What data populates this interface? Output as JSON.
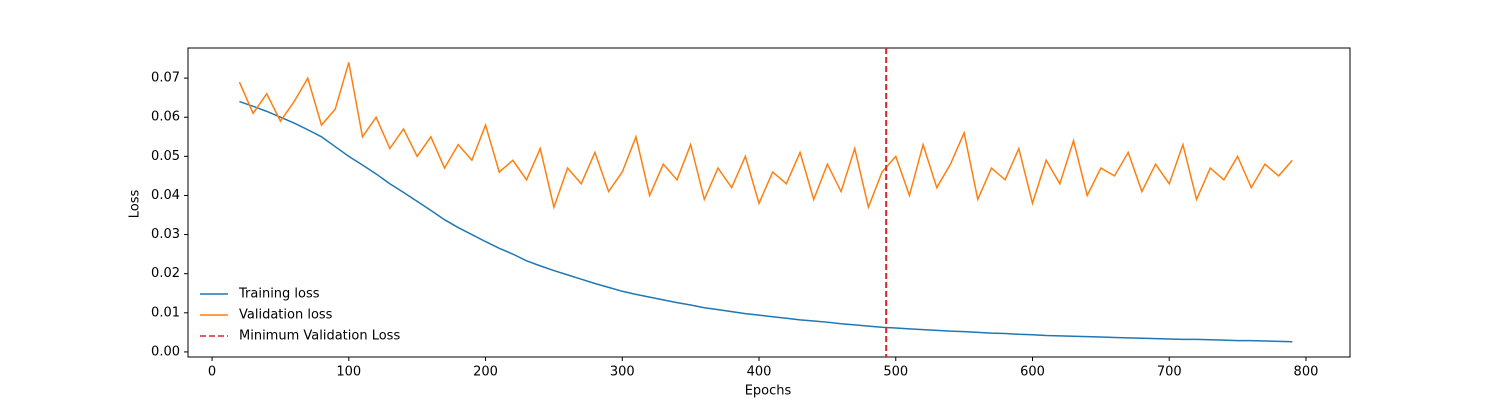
{
  "chart_data": {
    "type": "line",
    "xlabel": "Epochs",
    "ylabel": "Loss",
    "x": [
      20,
      30,
      40,
      50,
      60,
      70,
      80,
      90,
      100,
      110,
      120,
      130,
      140,
      150,
      160,
      170,
      180,
      190,
      200,
      210,
      220,
      230,
      240,
      250,
      260,
      270,
      280,
      290,
      300,
      310,
      320,
      330,
      340,
      350,
      360,
      370,
      380,
      390,
      400,
      410,
      420,
      430,
      440,
      450,
      460,
      470,
      480,
      490,
      500,
      510,
      520,
      530,
      540,
      550,
      560,
      570,
      580,
      590,
      600,
      610,
      620,
      630,
      640,
      650,
      660,
      670,
      680,
      690,
      700,
      710,
      720,
      730,
      740,
      750,
      760,
      770,
      780,
      790
    ],
    "series": [
      {
        "name": "Training loss",
        "color": "#1f77b4",
        "values": [
          0.064,
          0.0628,
          0.0615,
          0.06,
          0.0585,
          0.0568,
          0.055,
          0.0525,
          0.05,
          0.0478,
          0.0455,
          0.043,
          0.0408,
          0.0385,
          0.0362,
          0.0338,
          0.0318,
          0.03,
          0.0282,
          0.0265,
          0.025,
          0.0233,
          0.022,
          0.0208,
          0.0197,
          0.0186,
          0.0175,
          0.0165,
          0.0155,
          0.0147,
          0.014,
          0.0133,
          0.0126,
          0.012,
          0.0113,
          0.0108,
          0.0103,
          0.0098,
          0.0094,
          0.009,
          0.0086,
          0.0082,
          0.0079,
          0.0076,
          0.0072,
          0.0069,
          0.0066,
          0.0063,
          0.0061,
          0.0059,
          0.0057,
          0.0055,
          0.0053,
          0.0052,
          0.005,
          0.0048,
          0.0047,
          0.0045,
          0.0044,
          0.0042,
          0.0041,
          0.004,
          0.0039,
          0.0038,
          0.0037,
          0.0036,
          0.0035,
          0.0034,
          0.0033,
          0.0032,
          0.0032,
          0.0031,
          0.003,
          0.0029,
          0.0029,
          0.0028,
          0.0027,
          0.0026
        ]
      },
      {
        "name": "Validation loss",
        "color": "#ff7f0e",
        "values": [
          0.069,
          0.061,
          0.066,
          0.059,
          0.064,
          0.07,
          0.058,
          0.062,
          0.074,
          0.055,
          0.06,
          0.052,
          0.057,
          0.05,
          0.055,
          0.047,
          0.053,
          0.049,
          0.058,
          0.046,
          0.049,
          0.044,
          0.052,
          0.037,
          0.047,
          0.043,
          0.051,
          0.041,
          0.046,
          0.055,
          0.04,
          0.048,
          0.044,
          0.053,
          0.039,
          0.047,
          0.042,
          0.05,
          0.038,
          0.046,
          0.043,
          0.051,
          0.039,
          0.048,
          0.041,
          0.052,
          0.037,
          0.046,
          0.05,
          0.04,
          0.053,
          0.042,
          0.048,
          0.056,
          0.039,
          0.047,
          0.044,
          0.052,
          0.038,
          0.049,
          0.043,
          0.054,
          0.04,
          0.047,
          0.045,
          0.051,
          0.041,
          0.048,
          0.043,
          0.053,
          0.039,
          0.047,
          0.044,
          0.05,
          0.042,
          0.048,
          0.045,
          0.049
        ]
      }
    ],
    "vline": {
      "x": 493,
      "name": "Minimum Validation Loss",
      "color": "#d62728"
    },
    "xlim": [
      -17.6,
      832.2
    ],
    "xticks": [
      0,
      100,
      200,
      300,
      400,
      500,
      600,
      700,
      800
    ],
    "ylim": [
      -0.0013,
      0.0777
    ],
    "yticks": [
      {
        "value": 0,
        "label": "0.00"
      },
      0.01,
      0.02,
      0.03,
      0.04,
      0.05,
      0.06,
      0.07
    ],
    "legend": "lower left",
    "grid": false
  }
}
